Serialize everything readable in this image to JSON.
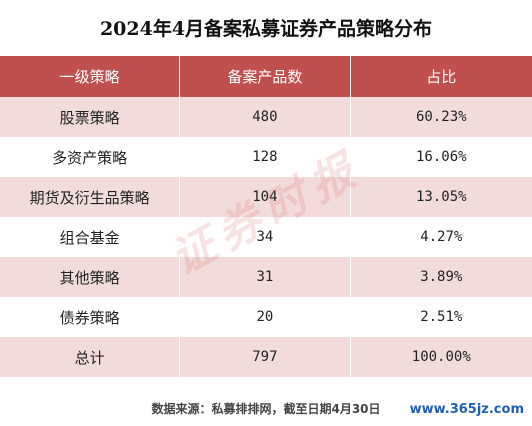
{
  "title": "2024年4月备案私募证券产品策略分布",
  "table": {
    "headers": [
      "一级策略",
      "备案产品数",
      "占比"
    ],
    "rows": [
      {
        "strategy": "股票策略",
        "count": "480",
        "share": "60.23%"
      },
      {
        "strategy": "多资产策略",
        "count": "128",
        "share": "16.06%"
      },
      {
        "strategy": "期货及衍生品策略",
        "count": "104",
        "share": "13.05%"
      },
      {
        "strategy": "组合基金",
        "count": "34",
        "share": "4.27%"
      },
      {
        "strategy": "其他策略",
        "count": "31",
        "share": "3.89%"
      },
      {
        "strategy": "债券策略",
        "count": "20",
        "share": "2.51%"
      },
      {
        "strategy": "总计",
        "count": "797",
        "share": "100.00%"
      }
    ]
  },
  "watermark": "证券时报",
  "source": "数据来源：私募排排网，截至日期4月30日",
  "site": "www.365jz.com",
  "colors": {
    "header_bg": "#c0504d",
    "row_alt_bg": "#f2dcdb",
    "site_text": "#1f5fb4"
  }
}
